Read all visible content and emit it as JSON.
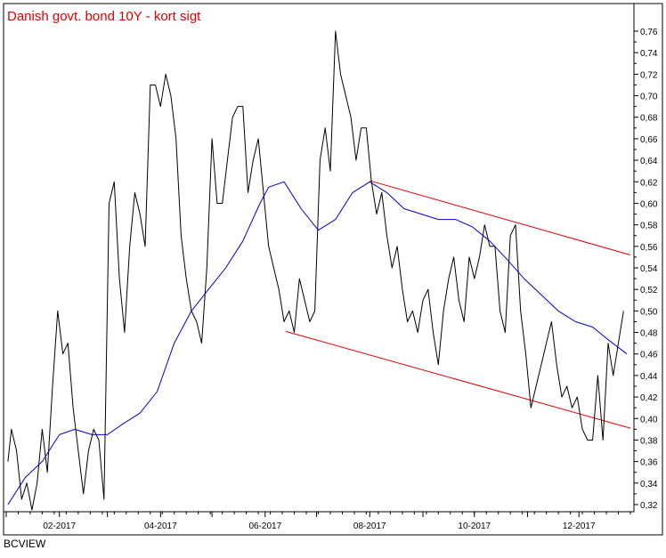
{
  "chart_data": {
    "type": "line",
    "title": "Danish govt. bond 10Y - kort sigt",
    "ylim": [
      0.315,
      0.765
    ],
    "y_ticks": [
      0.32,
      0.34,
      0.36,
      0.38,
      0.4,
      0.42,
      0.44,
      0.46,
      0.48,
      0.5,
      0.52,
      0.54,
      0.56,
      0.58,
      0.6,
      0.62,
      0.64,
      0.66,
      0.68,
      0.7,
      0.72,
      0.74,
      0.76
    ],
    "y_tick_labels": [
      "0,32",
      "0,34",
      "0,36",
      "0,38",
      "0,40",
      "0,42",
      "0,44",
      "0,46",
      "0,48",
      "0,50",
      "0,52",
      "0,54",
      "0,56",
      "0,58",
      "0,60",
      "0,62",
      "0,64",
      "0,66",
      "0,68",
      "0,70",
      "0,72",
      "0,74",
      "0,76"
    ],
    "x_range": [
      "2017-01-01",
      "2017-12-31"
    ],
    "x_ticks": [
      "2017-02-01",
      "2017-04-01",
      "2017-06-01",
      "2017-08-01",
      "2017-10-01",
      "2017-12-01"
    ],
    "x_tick_labels": [
      "02-2017",
      "04-2017",
      "06-2017",
      "08-2017",
      "10-2017",
      "12-2017"
    ],
    "grid": false,
    "series": [
      {
        "color": "#000000",
        "x": [
          "2017-01-02",
          "2017-01-04",
          "2017-01-07",
          "2017-01-10",
          "2017-01-13",
          "2017-01-16",
          "2017-01-19",
          "2017-01-22",
          "2017-01-25",
          "2017-01-28",
          "2017-01-31",
          "2017-02-03",
          "2017-02-06",
          "2017-02-09",
          "2017-02-12",
          "2017-02-15",
          "2017-02-18",
          "2017-02-21",
          "2017-02-24",
          "2017-02-27",
          "2017-03-02",
          "2017-03-05",
          "2017-03-08",
          "2017-03-11",
          "2017-03-14",
          "2017-03-17",
          "2017-03-20",
          "2017-03-23",
          "2017-03-26",
          "2017-03-29",
          "2017-04-01",
          "2017-04-04",
          "2017-04-07",
          "2017-04-10",
          "2017-04-13",
          "2017-04-16",
          "2017-04-19",
          "2017-04-22",
          "2017-04-25",
          "2017-04-28",
          "2017-05-01",
          "2017-05-04",
          "2017-05-07",
          "2017-05-10",
          "2017-05-13",
          "2017-05-16",
          "2017-05-19",
          "2017-05-22",
          "2017-05-25",
          "2017-05-28",
          "2017-05-31",
          "2017-06-03",
          "2017-06-06",
          "2017-06-09",
          "2017-06-12",
          "2017-06-15",
          "2017-06-18",
          "2017-06-21",
          "2017-06-24",
          "2017-06-27",
          "2017-06-30",
          "2017-07-03",
          "2017-07-06",
          "2017-07-09",
          "2017-07-12",
          "2017-07-15",
          "2017-07-18",
          "2017-07-21",
          "2017-07-24",
          "2017-07-27",
          "2017-07-30",
          "2017-08-02",
          "2017-08-05",
          "2017-08-08",
          "2017-08-11",
          "2017-08-14",
          "2017-08-17",
          "2017-08-20",
          "2017-08-23",
          "2017-08-26",
          "2017-08-29",
          "2017-09-01",
          "2017-09-04",
          "2017-09-07",
          "2017-09-10",
          "2017-09-13",
          "2017-09-16",
          "2017-09-19",
          "2017-09-22",
          "2017-09-25",
          "2017-09-28",
          "2017-10-01",
          "2017-10-04",
          "2017-10-07",
          "2017-10-10",
          "2017-10-13",
          "2017-10-16",
          "2017-10-19",
          "2017-10-22",
          "2017-10-25",
          "2017-10-28",
          "2017-10-31",
          "2017-11-03",
          "2017-11-06",
          "2017-11-09",
          "2017-11-12",
          "2017-11-15",
          "2017-11-18",
          "2017-11-21",
          "2017-11-24",
          "2017-11-27",
          "2017-11-30",
          "2017-12-03",
          "2017-12-06",
          "2017-12-09",
          "2017-12-12",
          "2017-12-15",
          "2017-12-18",
          "2017-12-21",
          "2017-12-24",
          "2017-12-27"
        ],
        "values": [
          0.36,
          0.39,
          0.37,
          0.325,
          0.34,
          0.315,
          0.34,
          0.39,
          0.35,
          0.43,
          0.5,
          0.46,
          0.47,
          0.41,
          0.37,
          0.33,
          0.37,
          0.39,
          0.38,
          0.325,
          0.6,
          0.62,
          0.53,
          0.48,
          0.56,
          0.61,
          0.59,
          0.56,
          0.71,
          0.71,
          0.69,
          0.72,
          0.7,
          0.66,
          0.57,
          0.53,
          0.5,
          0.49,
          0.47,
          0.54,
          0.66,
          0.6,
          0.6,
          0.64,
          0.68,
          0.69,
          0.69,
          0.61,
          0.64,
          0.66,
          0.61,
          0.56,
          0.54,
          0.52,
          0.49,
          0.5,
          0.48,
          0.53,
          0.51,
          0.49,
          0.5,
          0.64,
          0.67,
          0.63,
          0.76,
          0.72,
          0.7,
          0.68,
          0.64,
          0.67,
          0.67,
          0.62,
          0.59,
          0.61,
          0.57,
          0.54,
          0.56,
          0.52,
          0.49,
          0.5,
          0.48,
          0.51,
          0.52,
          0.48,
          0.45,
          0.5,
          0.53,
          0.55,
          0.51,
          0.49,
          0.55,
          0.53,
          0.55,
          0.58,
          0.56,
          0.56,
          0.5,
          0.48,
          0.57,
          0.58,
          0.5,
          0.46,
          0.41,
          0.43,
          0.45,
          0.47,
          0.49,
          0.45,
          0.42,
          0.43,
          0.41,
          0.42,
          0.39,
          0.38,
          0.38,
          0.44,
          0.38,
          0.47,
          0.44,
          0.47,
          0.5
        ]
      },
      {
        "color": "#0000cc",
        "x": [
          "2017-01-02",
          "2017-01-12",
          "2017-01-22",
          "2017-02-01",
          "2017-02-10",
          "2017-02-20",
          "2017-03-01",
          "2017-03-10",
          "2017-03-20",
          "2017-03-30",
          "2017-04-09",
          "2017-04-19",
          "2017-04-29",
          "2017-05-09",
          "2017-05-19",
          "2017-05-29",
          "2017-06-03",
          "2017-06-12",
          "2017-06-22",
          "2017-07-02",
          "2017-07-12",
          "2017-07-22",
          "2017-08-01",
          "2017-08-11",
          "2017-08-21",
          "2017-08-31",
          "2017-09-10",
          "2017-09-20",
          "2017-09-30",
          "2017-10-10",
          "2017-10-20",
          "2017-10-30",
          "2017-11-09",
          "2017-11-19",
          "2017-11-29",
          "2017-12-09",
          "2017-12-19",
          "2017-12-29"
        ],
        "values": [
          0.32,
          0.345,
          0.36,
          0.385,
          0.39,
          0.385,
          0.385,
          0.395,
          0.405,
          0.425,
          0.47,
          0.5,
          0.52,
          0.54,
          0.565,
          0.6,
          0.615,
          0.62,
          0.595,
          0.575,
          0.585,
          0.61,
          0.62,
          0.61,
          0.595,
          0.59,
          0.585,
          0.585,
          0.578,
          0.565,
          0.548,
          0.53,
          0.515,
          0.5,
          0.49,
          0.485,
          0.472,
          0.46
        ]
      }
    ],
    "trend_lines": [
      {
        "color": "#dd0000",
        "x": [
          "2017-08-01",
          "2017-12-31"
        ],
        "values": [
          0.621,
          0.552
        ]
      },
      {
        "color": "#dd0000",
        "x": [
          "2017-06-13",
          "2017-12-31"
        ],
        "values": [
          0.481,
          0.391
        ]
      }
    ]
  },
  "footer": "BCVIEW"
}
